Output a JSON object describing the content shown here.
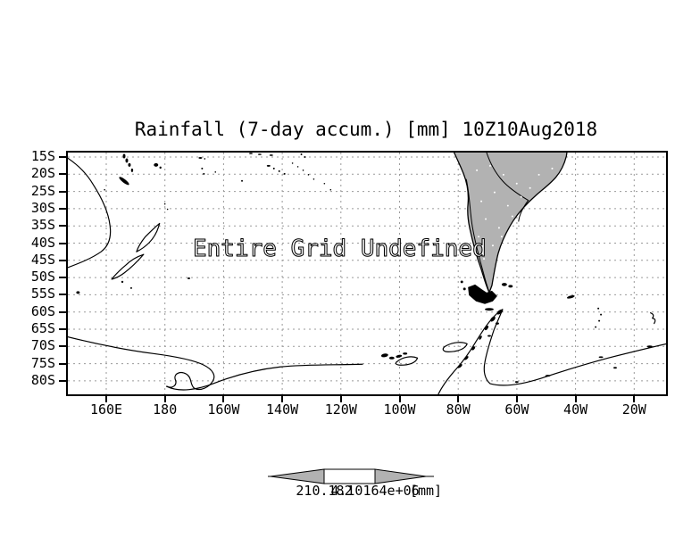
{
  "title": "Rainfall (7-day accum.) [mm] 10Z10Aug2018",
  "map": {
    "overlay_message": "Entire Grid Undefined",
    "lat_tick_labels": [
      "15S",
      "20S",
      "25S",
      "30S",
      "35S",
      "40S",
      "45S",
      "50S",
      "55S",
      "60S",
      "65S",
      "70S",
      "75S",
      "80S"
    ],
    "lon_tick_labels": [
      "160E",
      "180",
      "160W",
      "140W",
      "120W",
      "100W",
      "80W",
      "60W",
      "40W",
      "20W"
    ]
  },
  "colorbar": {
    "left_value": "210.182",
    "right_value": "4.10164e+06",
    "units_label": "[mm]"
  },
  "colors": {
    "background": "#ffffff",
    "land_fill": "#b2b2b2",
    "gridline": "#9a9a9a",
    "coastline": "#000000",
    "frame": "#000000"
  }
}
